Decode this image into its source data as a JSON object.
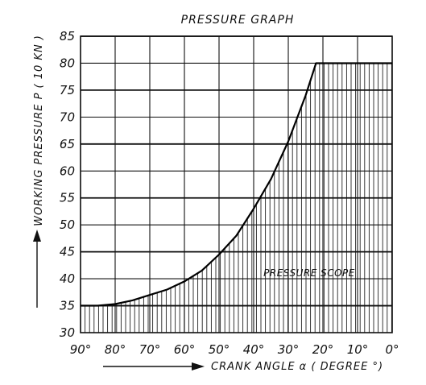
{
  "chart_data": {
    "type": "line",
    "title": "PRESSURE GRAPH",
    "xlabel": "CRANK ANGLE α ( DEGREE °)",
    "ylabel": "WORKING PRESSURE P ( 10 KN )",
    "annotation": "PRESSURE SCOPE",
    "xlim": [
      90,
      0
    ],
    "ylim": [
      30,
      85
    ],
    "x_ticks": [
      90,
      80,
      70,
      60,
      50,
      40,
      30,
      20,
      10,
      0
    ],
    "y_ticks": [
      30,
      35,
      40,
      45,
      50,
      55,
      60,
      65,
      70,
      75,
      80,
      85
    ],
    "x_tick_labels": [
      "90°",
      "80°",
      "70°",
      "60°",
      "50°",
      "40°",
      "30°",
      "20°",
      "10°",
      "0°"
    ],
    "grid": true,
    "hatch_fill": "under-curve",
    "series": [
      {
        "x": [
          90,
          85,
          80,
          75,
          70,
          65,
          60,
          55,
          50,
          45,
          40,
          35,
          30,
          25,
          22,
          20,
          10,
          0
        ],
        "y": [
          35,
          35,
          35.3,
          36,
          37,
          38,
          39.5,
          41.5,
          44.5,
          48,
          53,
          58.5,
          65.5,
          74,
          80,
          80,
          80,
          80
        ]
      }
    ]
  }
}
